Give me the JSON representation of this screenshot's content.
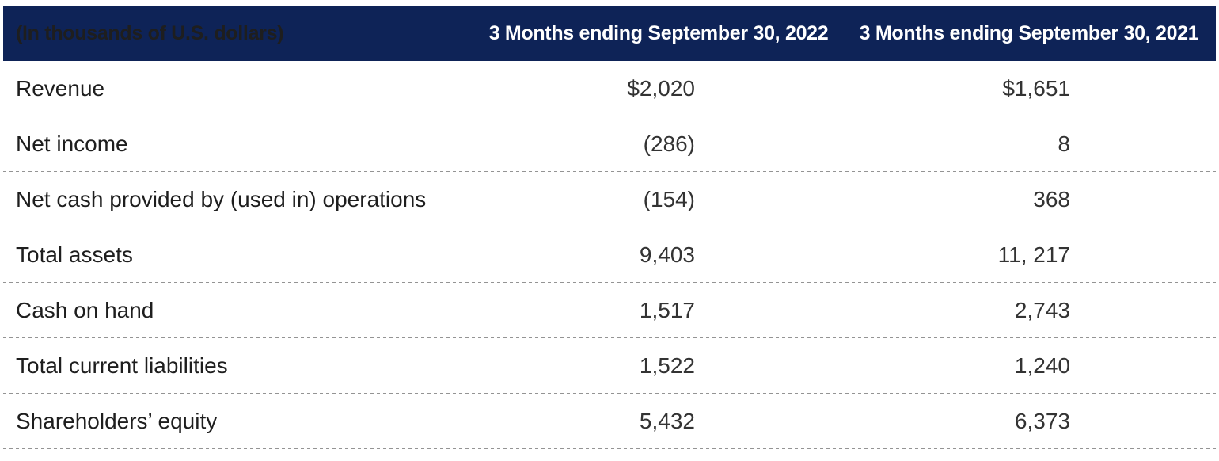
{
  "table": {
    "unit_label": "(In thousands of U.S. dollars)",
    "columns": {
      "col2022": "3 Months ending September 30, 2022",
      "col2021": "3 Months ending September 30, 2021"
    },
    "rows": [
      {
        "label": "Revenue",
        "v2022": "$2,020",
        "v2021": "$1,651"
      },
      {
        "label": "Net income",
        "v2022": "(286)",
        "v2021": "8"
      },
      {
        "label": "Net cash provided by (used in) operations",
        "v2022": "(154)",
        "v2021": "368"
      },
      {
        "label": "Total assets",
        "v2022": "9,403",
        "v2021": "11, 217"
      },
      {
        "label": "Cash on hand",
        "v2022": "1,517",
        "v2021": "2,743"
      },
      {
        "label": "Total current liabilities",
        "v2022": "1,522",
        "v2021": "1,240"
      },
      {
        "label": "Shareholders’ equity",
        "v2022": "5,432",
        "v2021": "6,373"
      }
    ],
    "colors": {
      "header_bg": "#0E2357",
      "header_text": "#FFFFFF",
      "label_text": "#1E1E1E",
      "value_text": "#333333",
      "divider": "#949494"
    }
  },
  "chart_data": {
    "type": "table",
    "title": "(In thousands of U.S. dollars)",
    "columns": [
      "(In thousands of U.S. dollars)",
      "3 Months ending September 30, 2022",
      "3 Months ending September 30, 2021"
    ],
    "rows": [
      [
        "Revenue",
        "$2,020",
        "$1,651"
      ],
      [
        "Net income",
        "(286)",
        "8"
      ],
      [
        "Net cash provided by (used in) operations",
        "(154)",
        "368"
      ],
      [
        "Total assets",
        "9,403",
        "11, 217"
      ],
      [
        "Cash on hand",
        "1,517",
        "2,743"
      ],
      [
        "Total current liabilities",
        "1,522",
        "1,240"
      ],
      [
        "Shareholders’ equity",
        "5,432",
        "6,373"
      ]
    ]
  }
}
